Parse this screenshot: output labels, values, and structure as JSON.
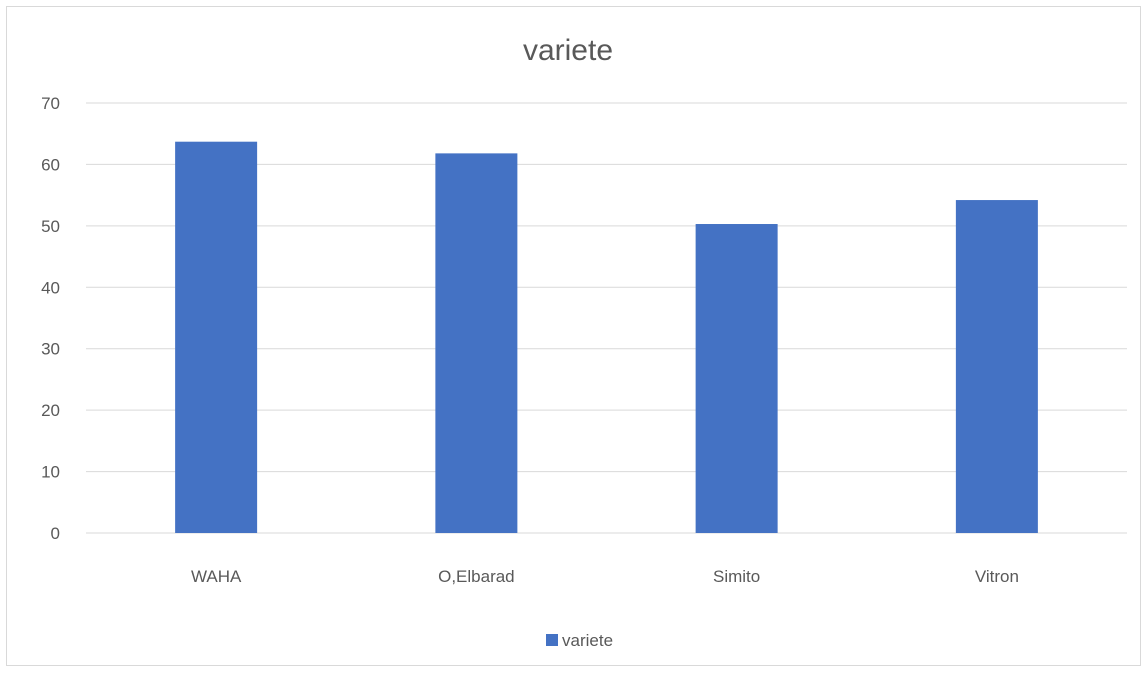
{
  "chart_data": {
    "type": "bar",
    "title": "variete",
    "categories": [
      "WAHA",
      "O,Elbarad",
      "Simito",
      "Vitron"
    ],
    "series": [
      {
        "name": "variete",
        "values": [
          63.7,
          61.8,
          50.3,
          54.2
        ]
      }
    ],
    "ylim": [
      0,
      70
    ],
    "yticks": [
      "0",
      "10",
      "20",
      "30",
      "40",
      "50",
      "60",
      "70"
    ],
    "grid": true,
    "legend_position": "bottom",
    "bar_color": "#4472c4"
  }
}
